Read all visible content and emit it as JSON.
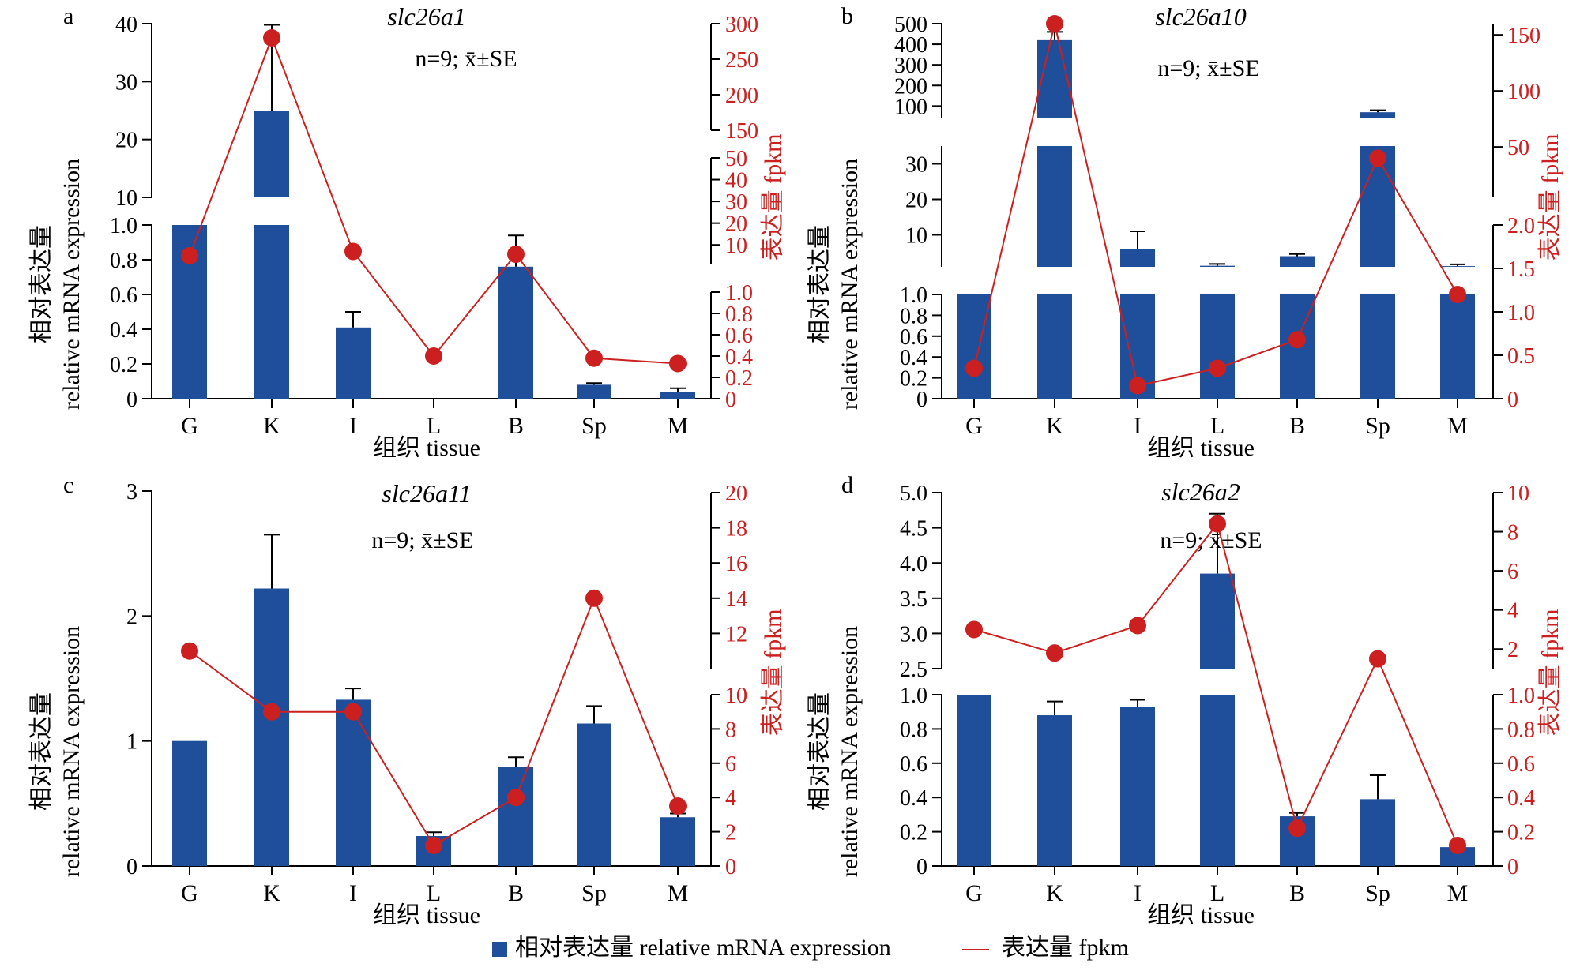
{
  "colors": {
    "bar": "#1f4e9b",
    "line": "#cc2020",
    "axis": "#000000",
    "secondary_axis": "#cc2020"
  },
  "legend": {
    "bar_label": "相对表达量 relative mRNA expression",
    "line_label": "表达量 fpkm",
    "placement": "bottom-center"
  },
  "chart_data": [
    {
      "type": "bar",
      "panel": "a",
      "title": "slc26a1",
      "stat_note": "n=9; x̄±SE",
      "categories": [
        "G",
        "K",
        "I",
        "L",
        "B",
        "Sp",
        "M"
      ],
      "xlabel": "组织 tissue",
      "ylabel": [
        "相对表达量",
        "relative mRNA expression"
      ],
      "y2label": "表达量 fpkm",
      "series": [
        {
          "name": "相对表达量 relative mRNA expression",
          "kind": "bar",
          "values": [
            1.0,
            25.0,
            0.41,
            0.0,
            0.76,
            0.08,
            0.04
          ],
          "errors": [
            0.0,
            14.8,
            0.09,
            0.0,
            0.18,
            0.01,
            0.02
          ]
        },
        {
          "name": "表达量 fpkm",
          "kind": "line",
          "values": [
            5,
            280,
            7,
            0.4,
            5.7,
            0.38,
            0.33
          ]
        }
      ],
      "y_axis_segments": [
        {
          "range": [
            0,
            1.0
          ],
          "ticks": [
            0,
            0.2,
            0.4,
            0.6,
            0.8,
            1.0
          ],
          "labels": [
            "0",
            "0.2",
            "0.4",
            "0.6",
            "0.8",
            "1.0"
          ]
        },
        {
          "range": [
            10,
            40
          ],
          "ticks": [
            10,
            20,
            30,
            40
          ],
          "labels": [
            "10",
            "20",
            "30",
            "40"
          ]
        }
      ],
      "y2_axis_segments": [
        {
          "range": [
            0,
            1.0
          ],
          "ticks": [
            0,
            0.2,
            0.4,
            0.6,
            0.8,
            1.0
          ],
          "labels": [
            "0",
            "0.2",
            "0.4",
            "0.6",
            "0.8",
            "1.0"
          ]
        },
        {
          "range": [
            1,
            50
          ],
          "ticks": [
            10,
            20,
            30,
            40,
            50
          ],
          "labels": [
            "10",
            "20",
            "30",
            "40",
            "50"
          ]
        },
        {
          "range": [
            150,
            300
          ],
          "ticks": [
            150,
            200,
            250,
            300
          ],
          "labels": [
            "150",
            "200",
            "250",
            "300"
          ]
        }
      ]
    },
    {
      "type": "bar",
      "panel": "b",
      "title": "slc26a10",
      "stat_note": "n=9; x̄±SE",
      "categories": [
        "G",
        "K",
        "I",
        "L",
        "B",
        "Sp",
        "M"
      ],
      "xlabel": "组织 tissue",
      "ylabel": [
        "相对表达量",
        "relative mRNA expression"
      ],
      "y2label": "表达量 fpkm",
      "series": [
        {
          "name": "相对表达量 relative mRNA expression",
          "kind": "bar",
          "values": [
            1.0,
            420,
            6.0,
            1.3,
            4.0,
            70,
            1.2
          ],
          "errors": [
            0.0,
            40,
            5.0,
            0.5,
            0.6,
            10,
            0.5
          ]
        },
        {
          "name": "表达量 fpkm",
          "kind": "line",
          "values": [
            0.35,
            160,
            0.15,
            0.35,
            0.68,
            40,
            1.2
          ]
        }
      ],
      "y_axis_segments": [
        {
          "range": [
            0,
            1.0
          ],
          "ticks": [
            0,
            0.2,
            0.4,
            0.6,
            0.8,
            1.0
          ],
          "labels": [
            "0",
            "0.2",
            "0.4",
            "0.6",
            "0.8",
            "1.0"
          ]
        },
        {
          "range": [
            1,
            35
          ],
          "ticks": [
            10,
            20,
            30
          ],
          "labels": [
            "10",
            "20",
            "30"
          ]
        },
        {
          "range": [
            40,
            500
          ],
          "ticks": [
            100,
            200,
            300,
            400,
            500
          ],
          "labels": [
            "100",
            "200",
            "300",
            "400",
            "500"
          ]
        }
      ],
      "y2_axis_segments": [
        {
          "range": [
            0,
            2.0
          ],
          "ticks": [
            0,
            0.5,
            1.0,
            1.5,
            2.0
          ],
          "labels": [
            "0",
            "0.5",
            "1.0",
            "1.5",
            "2.0"
          ]
        },
        {
          "range": [
            5,
            160
          ],
          "ticks": [
            50,
            100,
            150
          ],
          "labels": [
            "50",
            "100",
            "150"
          ]
        }
      ]
    },
    {
      "type": "bar",
      "panel": "c",
      "title": "slc26a11",
      "stat_note": "n=9; x̄±SE",
      "categories": [
        "G",
        "K",
        "I",
        "L",
        "B",
        "Sp",
        "M"
      ],
      "xlabel": "组织 tissue",
      "ylabel": [
        "相对表达量",
        "relative mRNA expression"
      ],
      "y2label": "表达量 fpkm",
      "series": [
        {
          "name": "相对表达量 relative mRNA expression",
          "kind": "bar",
          "values": [
            1.0,
            2.22,
            1.33,
            0.24,
            0.79,
            1.14,
            0.39
          ],
          "errors": [
            0.0,
            0.43,
            0.09,
            0.03,
            0.08,
            0.14,
            0.03
          ]
        },
        {
          "name": "表达量 fpkm",
          "kind": "line",
          "values": [
            11.0,
            9.0,
            9.0,
            1.2,
            4.0,
            14.0,
            3.5
          ]
        }
      ],
      "y_axis_segments": [
        {
          "range": [
            0,
            3
          ],
          "ticks": [
            0,
            1,
            2,
            3
          ],
          "labels": [
            "0",
            "1",
            "2",
            "3"
          ]
        }
      ],
      "y2_axis_segments": [
        {
          "range": [
            0,
            10
          ],
          "ticks": [
            0,
            2,
            4,
            6,
            8,
            10
          ],
          "labels": [
            "0",
            "2",
            "4",
            "6",
            "8",
            "10"
          ]
        },
        {
          "range": [
            10,
            20
          ],
          "ticks": [
            10,
            12,
            14,
            16,
            18,
            20
          ],
          "labels": [
            "10",
            "12",
            "14",
            "16",
            "18",
            "20"
          ]
        }
      ]
    },
    {
      "type": "bar",
      "panel": "d",
      "title": "slc26a2",
      "stat_note": "n=9; x̄±SE",
      "categories": [
        "G",
        "K",
        "I",
        "L",
        "B",
        "Sp",
        "M"
      ],
      "xlabel": "组织 tissue",
      "ylabel": [
        "相对表达量",
        "relative mRNA expression"
      ],
      "y2label": "表达量 fpkm",
      "series": [
        {
          "name": "相对表达量 relative mRNA expression",
          "kind": "bar",
          "values": [
            1.0,
            0.88,
            0.93,
            3.85,
            0.29,
            0.39,
            0.11
          ],
          "errors": [
            0.0,
            0.08,
            0.04,
            0.85,
            0.02,
            0.14,
            0.01
          ]
        },
        {
          "name": "表达量 fpkm",
          "kind": "line",
          "values": [
            3.0,
            1.8,
            3.2,
            8.4,
            0.22,
            1.5,
            0.12
          ]
        }
      ],
      "y_axis_segments": [
        {
          "range": [
            0,
            1.0
          ],
          "ticks": [
            0,
            0.2,
            0.4,
            0.6,
            0.8,
            1.0
          ],
          "labels": [
            "0",
            "0.2",
            "0.4",
            "0.6",
            "0.8",
            "1.0"
          ]
        },
        {
          "range": [
            2.5,
            5.0
          ],
          "ticks": [
            2.5,
            3.0,
            3.5,
            4.0,
            4.5,
            5.0
          ],
          "labels": [
            "2.5",
            "3.0",
            "3.5",
            "4.0",
            "4.5",
            "5.0"
          ]
        }
      ],
      "y2_axis_segments": [
        {
          "range": [
            0,
            1.0
          ],
          "ticks": [
            0,
            0.2,
            0.4,
            0.6,
            0.8,
            1.0
          ],
          "labels": [
            "0",
            "0.2",
            "0.4",
            "0.6",
            "0.8",
            "1.0"
          ]
        },
        {
          "range": [
            1,
            10
          ],
          "ticks": [
            2,
            4,
            6,
            8,
            10
          ],
          "labels": [
            "2",
            "4",
            "6",
            "8",
            "10"
          ]
        }
      ]
    }
  ]
}
